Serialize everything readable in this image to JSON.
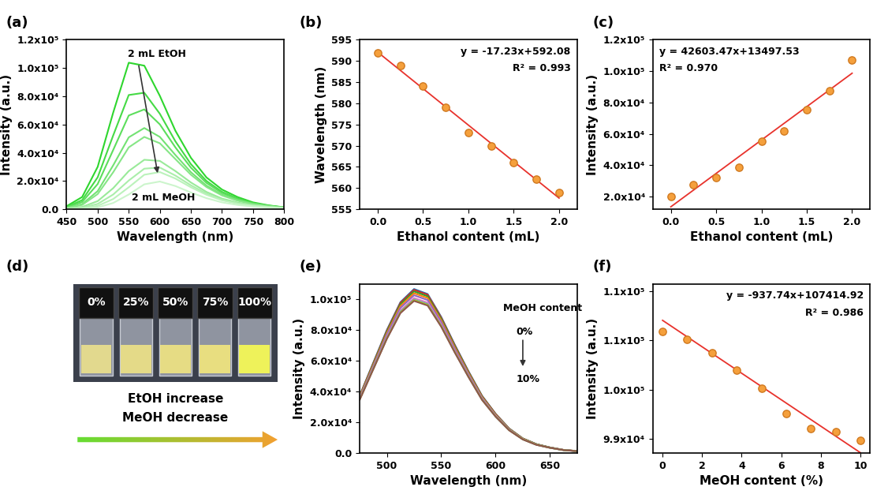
{
  "chart_data": [
    {
      "type": "line",
      "title": "(a)",
      "x_label": "Wavelength (nm)",
      "y_label": "Intensity (a.u.)",
      "x": [
        450,
        475,
        500,
        525,
        550,
        575,
        600,
        625,
        650,
        675,
        700,
        725,
        750,
        775,
        800
      ],
      "series": [
        {
          "color": "#2ed62e",
          "values": [
            2100,
            8600,
            30000,
            68500,
            103800,
            101700,
            80300,
            55600,
            36400,
            22500,
            13900,
            8600,
            4800,
            2700,
            1300
          ]
        },
        {
          "color": "#45da45",
          "values": [
            1600,
            6400,
            22600,
            52300,
            80900,
            82500,
            67600,
            48100,
            31900,
            20000,
            12300,
            7600,
            4300,
            2500,
            1200
          ]
        },
        {
          "color": "#5cde5c",
          "values": [
            1300,
            5100,
            17800,
            42000,
            66400,
            70700,
            60100,
            43800,
            29400,
            18600,
            11500,
            7100,
            4100,
            2300,
            1200
          ]
        },
        {
          "color": "#73e273",
          "values": [
            900,
            3600,
            12800,
            31100,
            50900,
            57500,
            51200,
            38400,
            26200,
            16700,
            10300,
            6400,
            3700,
            2200,
            1100
          ]
        },
        {
          "color": "#86e686",
          "values": [
            800,
            3000,
            10700,
            26200,
            43800,
            51200,
            46700,
            35500,
            24400,
            15700,
            9700,
            6000,
            3500,
            2100,
            1100
          ]
        },
        {
          "color": "#99ea99",
          "values": [
            400,
            1600,
            5700,
            14900,
            27000,
            35000,
            34200,
            27000,
            18900,
            12200,
            7500,
            4700,
            2800,
            1700,
            900
          ]
        },
        {
          "color": "#aaeeaa",
          "values": [
            300,
            1000,
            3700,
            10400,
            20300,
            28700,
            29500,
            23800,
            16900,
            11000,
            6800,
            4200,
            2500,
            1500,
            800
          ]
        },
        {
          "color": "#bbf2bb",
          "values": [
            200,
            600,
            2300,
            7200,
            15500,
            24400,
            26300,
            21700,
            15500,
            10200,
            6300,
            3900,
            2400,
            1400,
            800
          ]
        },
        {
          "color": "#ccf5cc",
          "values": [
            100,
            300,
            1200,
            4400,
            10400,
            17600,
            19600,
            16400,
            11800,
            7800,
            4800,
            3000,
            1800,
            1100,
            600
          ]
        }
      ],
      "xlim": [
        450,
        800
      ],
      "xticks": [
        450,
        500,
        550,
        600,
        650,
        700,
        750,
        800
      ],
      "ylim": [
        0,
        120000
      ],
      "yticks": [
        {
          "value": 0,
          "label": "0.0"
        },
        {
          "value": 20000,
          "label": "2.0x10⁴"
        },
        {
          "value": 40000,
          "label": "4.0x10⁴"
        },
        {
          "value": 60000,
          "label": "6.0x10⁴"
        },
        {
          "value": 80000,
          "label": "8.0x10⁴"
        },
        {
          "value": 100000,
          "label": "1.0x10⁵"
        },
        {
          "value": 120000,
          "label": "1.2x10⁵"
        }
      ],
      "annotations": [
        "2 mL EtOH",
        "2 mL MeOH"
      ]
    },
    {
      "type": "scatter",
      "title": "(b)",
      "x_label": "Ethanol content (mL)",
      "y_label": "Wavelength (nm)",
      "x": [
        0,
        0.25,
        0.5,
        0.75,
        1.0,
        1.25,
        1.5,
        1.75,
        2.0
      ],
      "values": [
        592,
        589,
        584,
        579,
        573,
        570,
        566,
        562,
        559
      ],
      "color": "#f5a03c",
      "fit": {
        "slope": -17.23,
        "intercept": 592.08,
        "color": "#e8322c"
      },
      "xlim": [
        -0.2,
        2.2
      ],
      "xticks": [
        {
          "value": 0,
          "label": "0.0"
        },
        0.5,
        {
          "value": 1,
          "label": "1.0"
        },
        1.5,
        {
          "value": 2,
          "label": "2.0"
        }
      ],
      "ylim": [
        555,
        595
      ],
      "yticks": [
        555,
        560,
        565,
        570,
        575,
        580,
        585,
        590,
        595
      ],
      "annotations": [
        "y = -17.23x+592.08",
        "R² = 0.993"
      ]
    },
    {
      "type": "scatter",
      "title": "(c)",
      "x_label": "Ethanol content (mL)",
      "y_label": "Intensity (a.u.)",
      "x": [
        0,
        0.25,
        0.5,
        0.75,
        1.0,
        1.25,
        1.5,
        1.75,
        2.0
      ],
      "values": [
        20000,
        27500,
        32000,
        38500,
        55500,
        62000,
        75500,
        87500,
        107000
      ],
      "color": "#f5a03c",
      "fit": {
        "slope": 42603.47,
        "intercept": 13497.53,
        "color": "#e8322c"
      },
      "xlim": [
        -0.2,
        2.2
      ],
      "xticks": [
        {
          "value": 0,
          "label": "0.0"
        },
        0.5,
        {
          "value": 1,
          "label": "1.0"
        },
        1.5,
        {
          "value": 2,
          "label": "2.0"
        }
      ],
      "ylim": [
        12000,
        120000
      ],
      "yticks": [
        {
          "value": 20000,
          "label": "2.0x10⁴"
        },
        {
          "value": 40000,
          "label": "4.0x10⁴"
        },
        {
          "value": 60000,
          "label": "6.0x10⁴"
        },
        {
          "value": 80000,
          "label": "8.0x10⁴"
        },
        {
          "value": 100000,
          "label": "1.0x10⁵"
        },
        {
          "value": 120000,
          "label": "1.2x10⁵"
        }
      ],
      "annotations": [
        "y = 42603.47x+13497.53",
        "R² = 0.970"
      ]
    },
    {
      "type": "image",
      "title": "(d)",
      "labels": [
        "0%",
        "25%",
        "50%",
        "75%",
        "100%"
      ],
      "colors": [
        "#e2d98e",
        "#e4da88",
        "#e6dc84",
        "#e8de80",
        "#eef25a"
      ],
      "annotations": [
        "EtOH increase",
        "MeOH decrease"
      ]
    },
    {
      "type": "line",
      "title": "(e)",
      "x_label": "Wavelength (nm)",
      "y_label": "Intensity (a.u.)",
      "x": [
        475,
        487.5,
        500,
        512.5,
        525,
        537.5,
        550,
        562.5,
        575,
        587.5,
        600,
        612.5,
        625,
        637.5,
        650,
        662.5,
        675
      ],
      "series": [
        {
          "color": "#1f77b4",
          "values": [
            37300,
            58700,
            80000,
            98100,
            106650,
            103400,
            88500,
            70400,
            53300,
            37300,
            25600,
            16000,
            9600,
            5900,
            3700,
            2100,
            1400
          ]
        },
        {
          "color": "#d62728",
          "values": [
            37100,
            58300,
            79500,
            97600,
            106050,
            102900,
            88000,
            70000,
            53000,
            37100,
            25500,
            15900,
            9500,
            5800,
            3700,
            2100,
            1400
          ]
        },
        {
          "color": "#2ca02c",
          "values": [
            36800,
            57800,
            78800,
            96700,
            105100,
            101900,
            87200,
            69400,
            52600,
            36800,
            25200,
            15800,
            9500,
            5800,
            3700,
            2100,
            1400
          ]
        },
        {
          "color": "#ff7f0e",
          "values": [
            36400,
            57100,
            77900,
            95600,
            103900,
            100800,
            86200,
            68600,
            52000,
            36400,
            24900,
            15600,
            9400,
            5700,
            3600,
            2100,
            1400
          ]
        },
        {
          "color": "#9467bd",
          "values": [
            35900,
            56400,
            77000,
            94400,
            102600,
            99500,
            85200,
            67700,
            51300,
            35900,
            24600,
            15400,
            9200,
            5600,
            3600,
            2100,
            1300
          ]
        },
        {
          "color": "#e377c2",
          "values": [
            35300,
            55400,
            75600,
            92700,
            100800,
            97800,
            83700,
            66500,
            50400,
            35300,
            24200,
            15100,
            9100,
            5500,
            3500,
            2000,
            1300
          ]
        },
        {
          "color": "#17becf",
          "values": [
            34900,
            54900,
            74800,
            91800,
            99750,
            96800,
            82800,
            65800,
            49900,
            34900,
            23900,
            15000,
            9000,
            5500,
            3500,
            2000,
            1300
          ]
        },
        {
          "color": "#bcbd22",
          "values": [
            34800,
            54700,
            74600,
            91500,
            99500,
            96500,
            82600,
            65700,
            49800,
            34800,
            23900,
            14900,
            9000,
            5500,
            3500,
            2000,
            1300
          ]
        },
        {
          "color": "#8c564b",
          "values": [
            34600,
            54400,
            74200,
            91000,
            98900,
            95900,
            82100,
            65300,
            49500,
            34600,
            23700,
            14800,
            8900,
            5400,
            3500,
            2000,
            1300
          ]
        }
      ],
      "xlim": [
        475,
        675
      ],
      "xticks": [
        500,
        550,
        600,
        650
      ],
      "ylim": [
        0,
        110000
      ],
      "yticks": [
        {
          "value": 0,
          "label": "0.0"
        },
        {
          "value": 20000,
          "label": "2.0x10⁴"
        },
        {
          "value": 40000,
          "label": "4.0x10⁴"
        },
        {
          "value": 60000,
          "label": "6.0x10⁴"
        },
        {
          "value": 80000,
          "label": "8.0x10⁴"
        },
        {
          "value": 100000,
          "label": "1.0x10⁵"
        }
      ],
      "annotations": [
        "MeOH content",
        "0%",
        "10%"
      ]
    },
    {
      "type": "scatter",
      "title": "(f)",
      "x_label": "MeOH content (%)",
      "y_label": "Intensity (a.u.)",
      "x": [
        0,
        1.25,
        2.5,
        3.75,
        5.0,
        6.25,
        7.5,
        8.75,
        10.0
      ],
      "values": [
        106650,
        106050,
        105100,
        103900,
        102600,
        100800,
        99750,
        99500,
        98900
      ],
      "color": "#f5a03c",
      "fit": {
        "slope": -937.74,
        "intercept": 107414.92,
        "color": "#e8322c"
      },
      "xlim": [
        -0.5,
        10.5
      ],
      "xticks": [
        0,
        2,
        4,
        6,
        8,
        10
      ],
      "ylim": [
        98000,
        110000
      ],
      "yticks": [
        {
          "value": 99000,
          "label": "9.9x10⁴"
        },
        {
          "value": 102500,
          "label": "1.0x10⁵"
        },
        {
          "value": 106000,
          "label": "1.1x10⁵"
        },
        {
          "value": 109500,
          "label": "1.1x10⁵"
        }
      ],
      "annotations": [
        "y = -937.74x+107414.92",
        "R² = 0.986"
      ]
    }
  ]
}
